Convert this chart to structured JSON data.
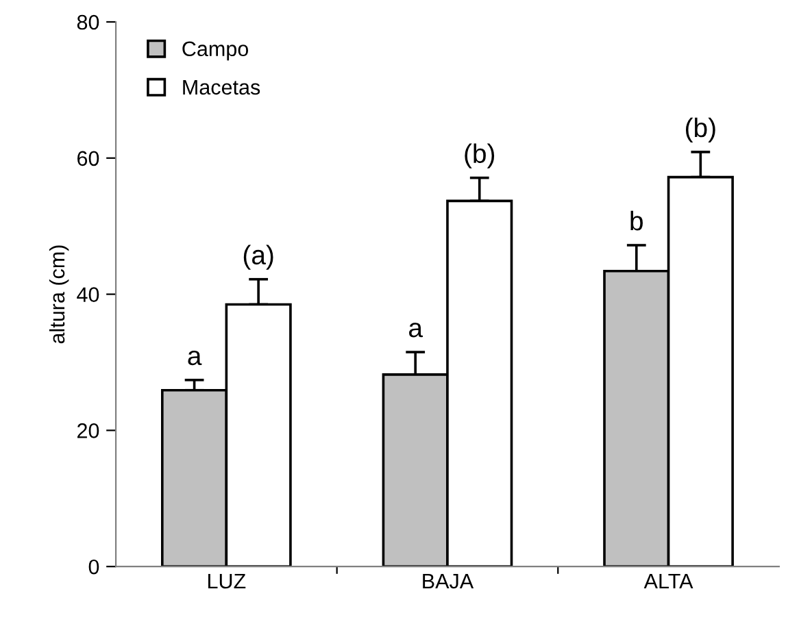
{
  "chart_data": {
    "type": "bar",
    "ylabel": "altura (cm)",
    "categories": [
      "LUZ",
      "BAJA",
      "ALTA"
    ],
    "series": [
      {
        "name": "Campo",
        "color": "#c0c0c0",
        "values": [
          25.9,
          28.2,
          43.4
        ],
        "errors": [
          1.5,
          3.3,
          3.8
        ]
      },
      {
        "name": "Macetas",
        "color": "#ffffff",
        "values": [
          38.5,
          53.7,
          57.2
        ],
        "errors": [
          3.7,
          3.4,
          3.7
        ]
      }
    ],
    "ylim": [
      0,
      80
    ],
    "yticks": [
      0,
      20,
      40,
      60,
      80
    ],
    "grid": false,
    "legend": "top left",
    "annotations": [
      {
        "text": "a",
        "x": "LUZ",
        "y": 25.9
      },
      {
        "text": "(a)",
        "x": "LUZ",
        "y": 38.5
      },
      {
        "text": "a",
        "x": "BAJA",
        "y": 28.2
      },
      {
        "text": "(b)",
        "x": "BAJA",
        "y": 53.7
      },
      {
        "text": "b",
        "x": "ALTA",
        "y": 43.4
      },
      {
        "text": "(b)",
        "x": "ALTA",
        "y": 57.2
      }
    ]
  }
}
